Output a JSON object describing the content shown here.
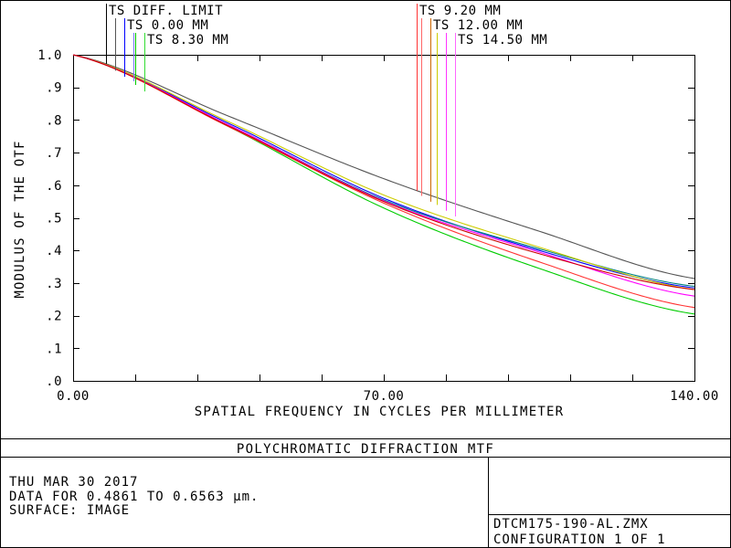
{
  "chart_data": {
    "type": "line",
    "title": "POLYCHROMATIC DIFFRACTION MTF",
    "xlabel": "SPATIAL FREQUENCY IN CYCLES PER MILLIMETER",
    "ylabel": "MODULUS OF THE OTF",
    "xlim": [
      0,
      140
    ],
    "ylim": [
      0,
      1
    ],
    "x_ticks": [
      0,
      14,
      28,
      42,
      56,
      70,
      84,
      98,
      112,
      126,
      140
    ],
    "x_tick_labels": [
      "0.00",
      "70.00",
      "140.00"
    ],
    "x_tick_label_values": [
      0,
      70,
      140
    ],
    "y_ticks": [
      0,
      0.1,
      0.2,
      0.3,
      0.4,
      0.5,
      0.6,
      0.7,
      0.8,
      0.9,
      1.0
    ],
    "y_tick_labels": [
      ".0",
      ".1",
      ".2",
      ".3",
      ".4",
      ".5",
      ".6",
      ".7",
      ".8",
      ".9",
      "1.0"
    ],
    "grid": false,
    "series": [
      {
        "name": "TS DIFF. LIMIT",
        "color": "#555555",
        "x": [
          0,
          35,
          70,
          105,
          140
        ],
        "y": [
          1.0,
          0.812,
          0.62,
          0.459,
          0.314
        ]
      },
      {
        "name": "TS 0.00 MM",
        "color": "#0000ff",
        "x": [
          0,
          35,
          70,
          105,
          140
        ],
        "y": [
          1.0,
          0.79,
          0.56,
          0.4,
          0.285
        ]
      },
      {
        "name": "TS 0.00 MM",
        "color": "#008080",
        "x": [
          0,
          35,
          70,
          105,
          140
        ],
        "y": [
          1.0,
          0.785,
          0.555,
          0.405,
          0.29
        ]
      },
      {
        "name": "TS 8.30 MM",
        "color": "#00cc00",
        "x": [
          0,
          35,
          70,
          105,
          140
        ],
        "y": [
          1.0,
          0.78,
          0.53,
          0.345,
          0.205
        ]
      },
      {
        "name": "TS 8.30 MM",
        "color": "#cccc00",
        "x": [
          0,
          35,
          70,
          105,
          140
        ],
        "y": [
          1.0,
          0.795,
          0.57,
          0.41,
          0.28
        ]
      },
      {
        "name": "TS 9.20 MM",
        "color": "#ff3333",
        "x": [
          0,
          35,
          70,
          105,
          140
        ],
        "y": [
          1.0,
          0.78,
          0.545,
          0.365,
          0.225
        ]
      },
      {
        "name": "TS 12.00 MM",
        "color": "#ff00ff",
        "x": [
          0,
          35,
          70,
          105,
          140
        ],
        "y": [
          1.0,
          0.785,
          0.552,
          0.395,
          0.26
        ]
      },
      {
        "name": "TS 14.50 MM",
        "color": "#cc0000",
        "x": [
          0,
          35,
          70,
          105,
          140
        ],
        "y": [
          1.0,
          0.782,
          0.55,
          0.39,
          0.28
        ]
      }
    ],
    "legend_left": [
      {
        "label": "TS DIFF. LIMIT",
        "colors": [
          "#000000"
        ],
        "x_ends": [
          7.5
        ]
      },
      {
        "label": "TS 0.00 MM",
        "colors": [
          "#555555",
          "#0000ff"
        ],
        "x_ends": [
          9.5,
          11.5
        ]
      },
      {
        "label": "TS 8.30 MM",
        "colors": [
          "#7777ff",
          "#00cc00",
          "#33dd33"
        ],
        "x_ends": [
          13.5,
          14.0,
          16.0
        ]
      }
    ],
    "legend_right": [
      {
        "label": "TS 9.20 MM",
        "colors": [
          "#ff3333"
        ],
        "x_ends": [
          77.5
        ]
      },
      {
        "label": "TS 12.00 MM",
        "colors": [
          "#ff6666",
          "#cc6600"
        ],
        "x_ends": [
          78.5,
          80.5
        ]
      },
      {
        "label": "TS 14.50 MM",
        "colors": [
          "#cccc00",
          "#ff33ff",
          "#ff66ff"
        ],
        "x_ends": [
          82.0,
          84.0,
          86.0
        ]
      }
    ]
  },
  "info": {
    "date": "THU MAR 30 2017",
    "data_range": "DATA FOR 0.4861 TO 0.6563 µm.",
    "surface": "SURFACE: IMAGE",
    "file": "DTCM175-190-AL.ZMX",
    "configuration": "CONFIGURATION 1 OF 1"
  }
}
